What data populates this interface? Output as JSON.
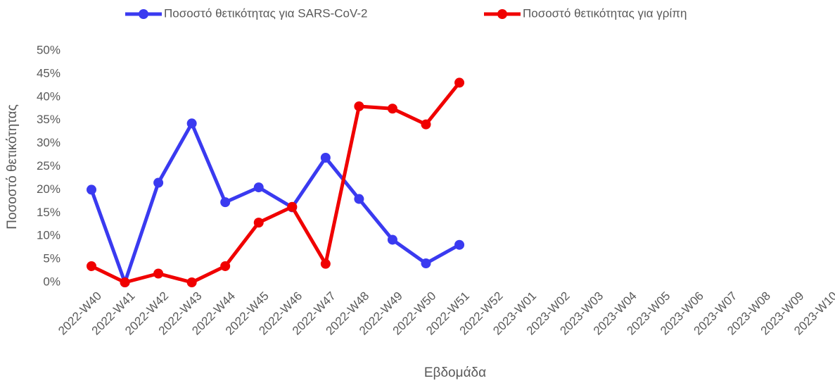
{
  "chart_data": {
    "type": "line",
    "x_label": "Εβδομάδα",
    "y_label": "Ποσοστό θετικότητας",
    "categories": [
      "2022-W40",
      "2022-W41",
      "2022-W42",
      "2022-W43",
      "2022-W44",
      "2022-W45",
      "2022-W46",
      "2022-W47",
      "2022-W48",
      "2022-W49",
      "2022-W50",
      "2022-W51",
      "2022-W52",
      "2023-W01",
      "2023-W02",
      "2023-W03",
      "2023-W04",
      "2023-W05",
      "2023-W06",
      "2023-W07",
      "2023-W08",
      "2023-W09",
      "2023-W10"
    ],
    "series": [
      {
        "name": "Ποσοστό θετικότητας για SARS-CoV-2",
        "color": "#3a3af0",
        "values": [
          20,
          0,
          21.5,
          34.3,
          17.3,
          20.5,
          16.2,
          26.9,
          18,
          9.2,
          4.1,
          8.1,
          null,
          null,
          null,
          null,
          null,
          null,
          null,
          null,
          null,
          null,
          null
        ]
      },
      {
        "name": "Ποσοστό θετικότητας για γρίπη",
        "color": "#f00000",
        "values": [
          3.5,
          0,
          1.9,
          0,
          3.5,
          12.9,
          16.3,
          4,
          38,
          37.5,
          34.1,
          43.1,
          null,
          null,
          null,
          null,
          null,
          null,
          null,
          null,
          null,
          null,
          null
        ]
      }
    ],
    "ylim": [
      0,
      50
    ],
    "yticks": [
      {
        "value": 0,
        "label": "0%"
      },
      {
        "value": 5,
        "label": "5%"
      },
      {
        "value": 10,
        "label": "10%"
      },
      {
        "value": 15,
        "label": "15%"
      },
      {
        "value": 20,
        "label": "20%"
      },
      {
        "value": 25,
        "label": "25%"
      },
      {
        "value": 30,
        "label": "30%"
      },
      {
        "value": 35,
        "label": "35%"
      },
      {
        "value": 40,
        "label": "40%"
      },
      {
        "value": 45,
        "label": "45%"
      },
      {
        "value": 50,
        "label": "50%"
      }
    ],
    "legend": "top"
  }
}
